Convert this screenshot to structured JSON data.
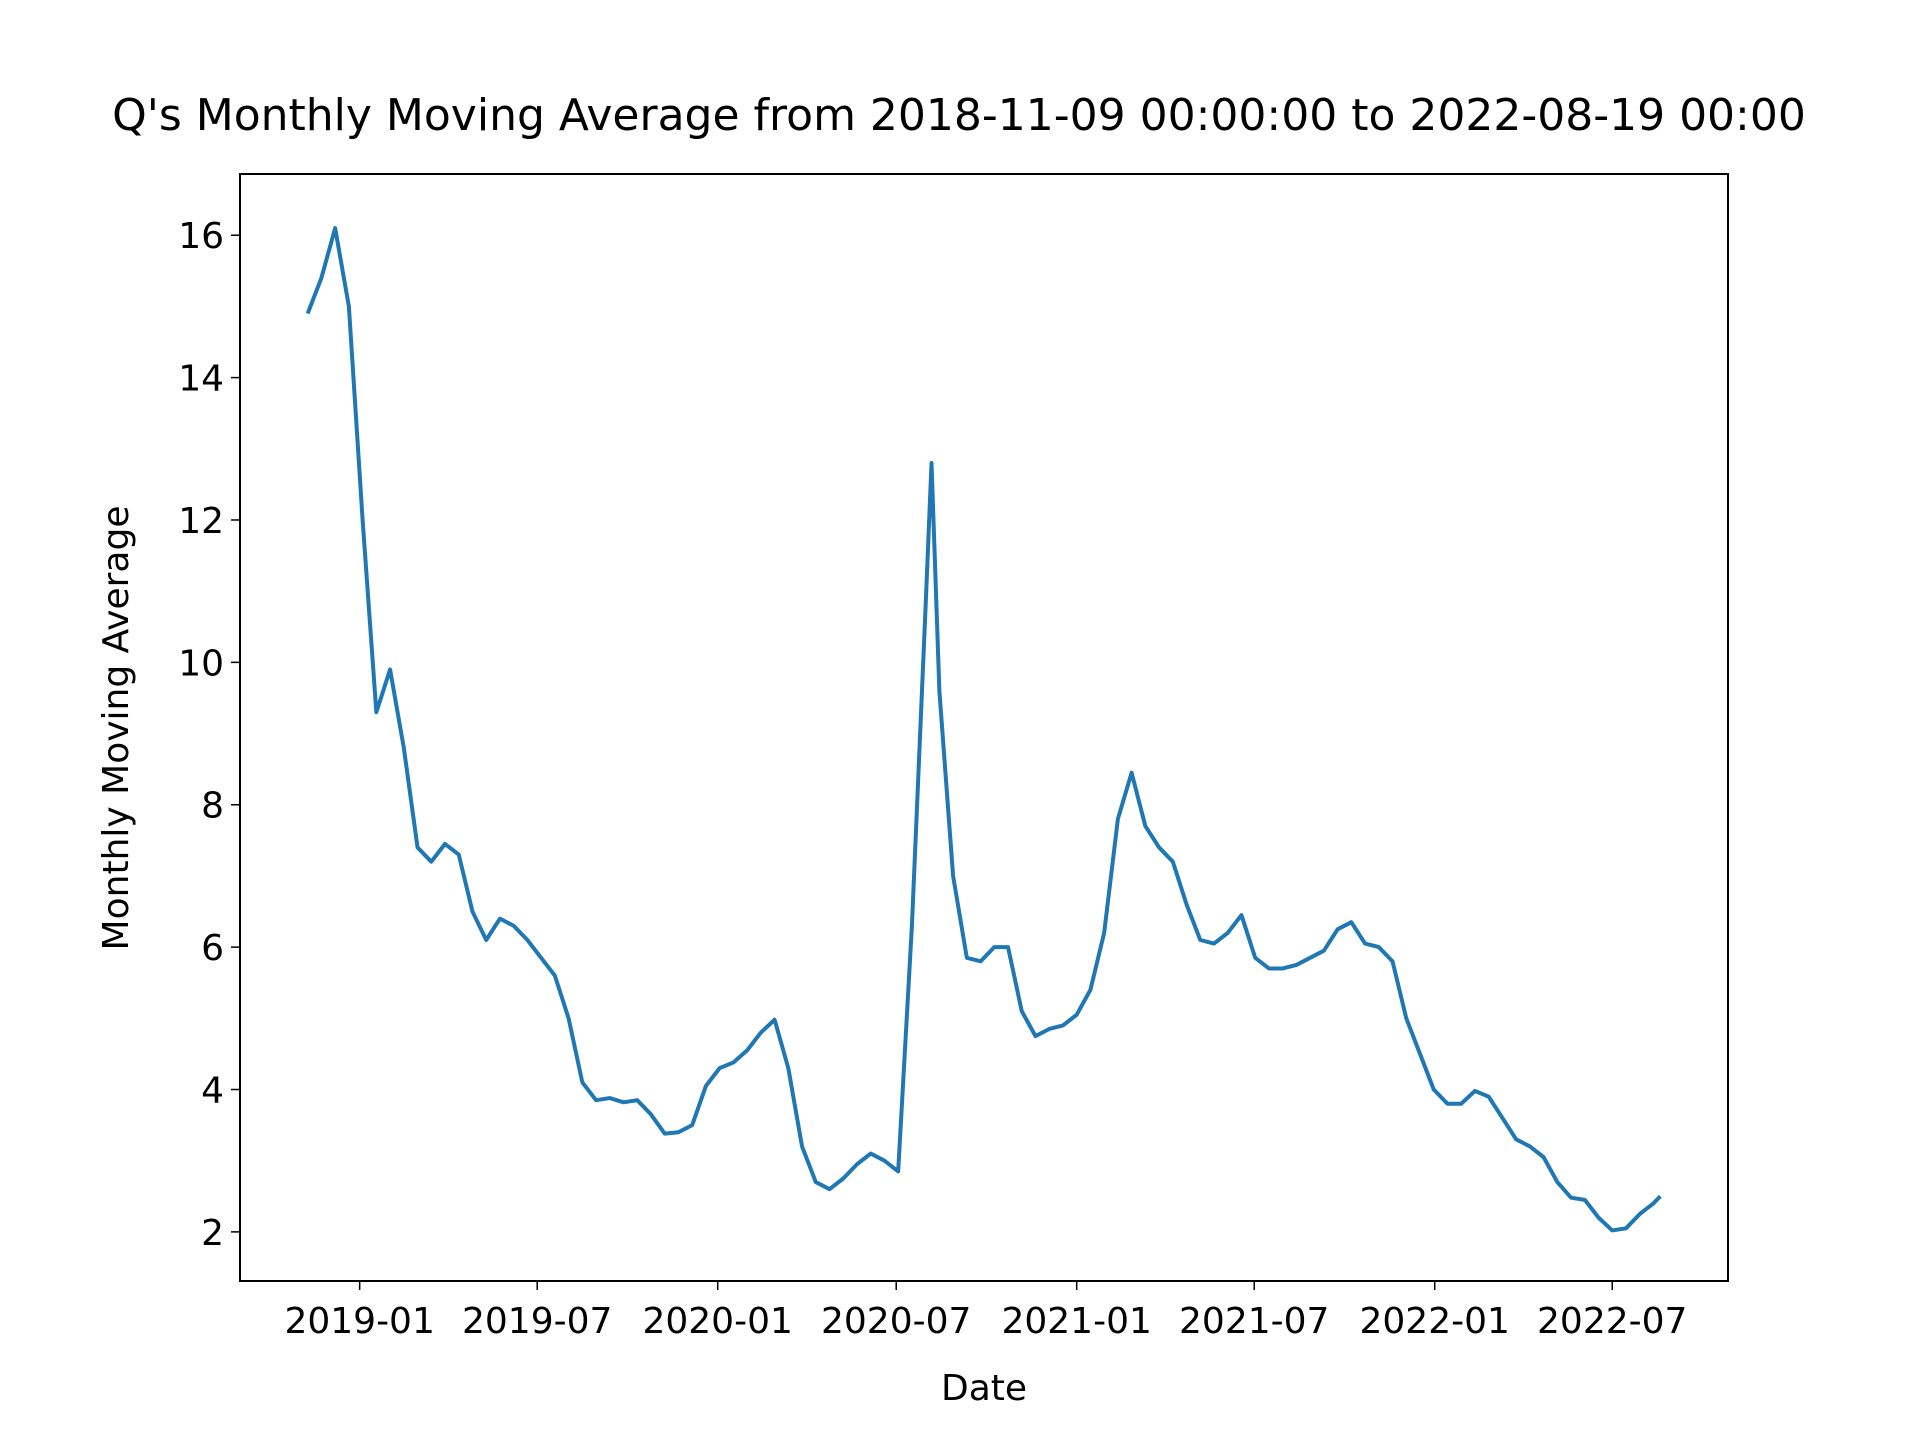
{
  "chart_data": {
    "type": "line",
    "title": "Q's Monthly Moving Average from 2018-11-09 00:00:00 to 2022-08-19 00:00",
    "xlabel": "Date",
    "ylabel": "Monthly Moving Average",
    "color": "#1f77b4",
    "x": [
      "2018-11-09",
      "2018-11-23",
      "2018-12-07",
      "2018-12-21",
      "2019-01-04",
      "2019-01-18",
      "2019-02-01",
      "2019-02-15",
      "2019-03-01",
      "2019-03-15",
      "2019-03-29",
      "2019-04-12",
      "2019-04-26",
      "2019-05-10",
      "2019-05-24",
      "2019-06-07",
      "2019-06-21",
      "2019-07-05",
      "2019-07-19",
      "2019-08-02",
      "2019-08-16",
      "2019-08-30",
      "2019-09-13",
      "2019-09-27",
      "2019-10-11",
      "2019-10-25",
      "2019-11-08",
      "2019-11-22",
      "2019-12-06",
      "2019-12-20",
      "2020-01-03",
      "2020-01-17",
      "2020-01-31",
      "2020-02-14",
      "2020-02-28",
      "2020-03-13",
      "2020-03-27",
      "2020-04-10",
      "2020-04-24",
      "2020-05-08",
      "2020-05-22",
      "2020-06-05",
      "2020-06-19",
      "2020-07-03",
      "2020-07-17",
      "2020-07-31",
      "2020-08-06",
      "2020-08-14",
      "2020-08-28",
      "2020-09-11",
      "2020-09-25",
      "2020-10-09",
      "2020-10-23",
      "2020-11-06",
      "2020-11-20",
      "2020-12-04",
      "2020-12-18",
      "2021-01-01",
      "2021-01-15",
      "2021-01-29",
      "2021-02-12",
      "2021-02-26",
      "2021-03-12",
      "2021-03-26",
      "2021-04-09",
      "2021-04-23",
      "2021-05-07",
      "2021-05-21",
      "2021-06-04",
      "2021-06-18",
      "2021-07-02",
      "2021-07-16",
      "2021-07-30",
      "2021-08-13",
      "2021-08-27",
      "2021-09-10",
      "2021-09-24",
      "2021-10-08",
      "2021-10-22",
      "2021-11-05",
      "2021-11-19",
      "2021-12-03",
      "2021-12-17",
      "2021-12-31",
      "2022-01-14",
      "2022-01-28",
      "2022-02-11",
      "2022-02-25",
      "2022-03-11",
      "2022-03-25",
      "2022-04-08",
      "2022-04-22",
      "2022-05-06",
      "2022-05-20",
      "2022-06-03",
      "2022-06-17",
      "2022-07-01",
      "2022-07-15",
      "2022-07-29",
      "2022-08-12",
      "2022-08-19"
    ],
    "values": [
      14.9,
      15.4,
      16.1,
      15.0,
      12.0,
      9.3,
      9.9,
      8.8,
      7.4,
      7.2,
      7.45,
      7.3,
      6.5,
      6.1,
      6.4,
      6.3,
      6.1,
      5.85,
      5.6,
      5.0,
      4.1,
      3.85,
      3.88,
      3.82,
      3.85,
      3.65,
      3.38,
      3.4,
      3.5,
      4.05,
      4.3,
      4.38,
      4.55,
      4.8,
      4.98,
      4.3,
      3.2,
      2.7,
      2.6,
      2.75,
      2.95,
      3.1,
      3.0,
      2.85,
      6.3,
      10.8,
      12.8,
      9.6,
      7.0,
      5.85,
      5.8,
      6.0,
      6.0,
      5.1,
      4.75,
      4.85,
      4.9,
      5.05,
      5.4,
      6.2,
      7.8,
      8.45,
      7.7,
      7.4,
      7.2,
      6.6,
      6.1,
      6.05,
      6.2,
      6.45,
      5.85,
      5.7,
      5.7,
      5.75,
      5.85,
      5.95,
      6.25,
      6.35,
      6.05,
      6.0,
      5.8,
      5.0,
      4.5,
      4.0,
      3.8,
      3.8,
      3.98,
      3.9,
      3.6,
      3.3,
      3.2,
      3.05,
      2.7,
      2.48,
      2.45,
      2.2,
      2.02,
      2.05,
      2.25,
      2.4,
      2.5
    ],
    "xlim": [
      "2018-09-01",
      "2022-10-27"
    ],
    "xticks": [
      {
        "value": "2019-01-01",
        "label": "2019-01"
      },
      {
        "value": "2019-07-01",
        "label": "2019-07"
      },
      {
        "value": "2020-01-01",
        "label": "2020-01"
      },
      {
        "value": "2020-07-01",
        "label": "2020-07"
      },
      {
        "value": "2021-01-01",
        "label": "2021-01"
      },
      {
        "value": "2021-07-01",
        "label": "2021-07"
      },
      {
        "value": "2022-01-01",
        "label": "2022-01"
      },
      {
        "value": "2022-07-01",
        "label": "2022-07"
      }
    ],
    "ylim": [
      1.31,
      16.86
    ],
    "yticks": [
      2,
      4,
      6,
      8,
      10,
      12,
      14,
      16
    ],
    "grid": false
  }
}
